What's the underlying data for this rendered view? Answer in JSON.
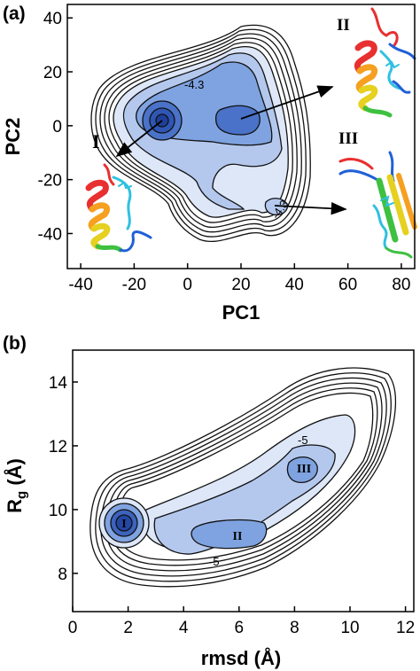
{
  "chart_data": [
    {
      "panel_label": "(a)",
      "type": "contour",
      "xlabel": "PC1",
      "ylabel": "PC2",
      "xlim": [
        -45,
        85
      ],
      "ylim": [
        -53,
        45
      ],
      "xticks": [
        "-40",
        "-20",
        "0",
        "20",
        "40",
        "60",
        "80"
      ],
      "yticks": [
        "40",
        "20",
        "0",
        "-20",
        "-40"
      ],
      "contour_labels": [
        "-4.3",
        "-4.3"
      ],
      "states": [
        {
          "name": "I",
          "basin_x": -11,
          "basin_y": 1
        },
        {
          "name": "II",
          "basin_x": 22,
          "basin_y": 3
        },
        {
          "name": "III",
          "basin_x": 32,
          "basin_y": -33
        }
      ],
      "colors": {
        "deep": "#2244a8",
        "mid": "#5e86d4",
        "light": "#b4c8ee",
        "lightest": "#dde7f8"
      }
    },
    {
      "panel_label": "(b)",
      "type": "contour",
      "xlabel": "rmsd (Å)",
      "ylabel": "Rg (Å)",
      "ylabel_main": "R",
      "ylabel_sub": "g",
      "ylabel_unit": " (Å)",
      "xlim": [
        0,
        12.3
      ],
      "ylim": [
        6.8,
        15
      ],
      "xticks": [
        "0",
        "2",
        "4",
        "6",
        "8",
        "10",
        "12"
      ],
      "yticks": [
        "14",
        "12",
        "10",
        "8"
      ],
      "contour_labels": [
        "-5",
        "-5"
      ],
      "states": [
        {
          "name": "I",
          "basin_x": 2.1,
          "basin_y": 9.3
        },
        {
          "name": "II",
          "basin_x": 6.2,
          "basin_y": 8.8
        },
        {
          "name": "III",
          "basin_x": 8.5,
          "basin_y": 11.2
        }
      ],
      "colors": {
        "deep": "#2244a8",
        "mid": "#5e86d4",
        "light": "#b4c8ee",
        "lightest": "#dde7f8"
      }
    }
  ]
}
